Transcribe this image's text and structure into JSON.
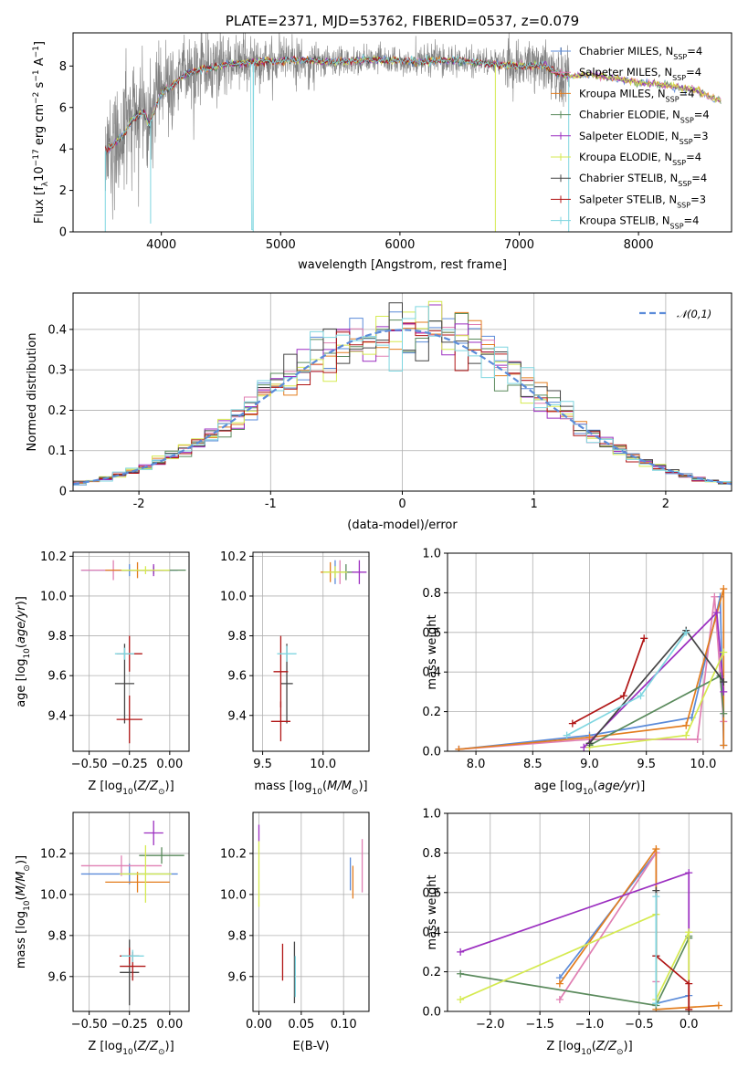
{
  "chart_data": [
    {
      "id": "spectrum",
      "type": "line",
      "title": "PLATE=2371, MJD=53762, FIBERID=0537, z=0.079",
      "xlabel": "wavelength [Angstrom, rest frame]",
      "ylabel": "Flux [f_λ10^-17 erg cm^-2 s^-1 A^-1]",
      "xlim": [
        3260,
        8780
      ],
      "ylim": [
        0,
        9.6
      ],
      "xticks": [
        4000,
        5000,
        6000,
        7000,
        8000
      ],
      "yticks": [
        0,
        2,
        4,
        6,
        8
      ],
      "grid": false,
      "legend_position": "top-right",
      "data_series": {
        "name": "",
        "color": "#808080",
        "x_range": [
          3530,
          7420
        ]
      },
      "series": [
        {
          "name": "Chabrier MILES, N_SSP=4",
          "color": "#5b8bd9"
        },
        {
          "name": "Salpeter MILES, N_SSP=4",
          "color": "#e07fb3"
        },
        {
          "name": "Kroupa MILES, N_SSP=4",
          "color": "#e37d1e"
        },
        {
          "name": "Chabrier ELODIE, N_SSP=4",
          "color": "#5a8a5c"
        },
        {
          "name": "Salpeter ELODIE, N_SSP=3",
          "color": "#9b2ec0"
        },
        {
          "name": "Kroupa ELODIE, N_SSP=4",
          "color": "#d5ea50"
        },
        {
          "name": "Chabrier STELIB, N_SSP=4",
          "color": "#444444"
        },
        {
          "name": "Salpeter STELIB, N_SSP=3",
          "color": "#b01515"
        },
        {
          "name": "Kroupa STELIB, N_SSP=4",
          "color": "#7fd6e0"
        }
      ],
      "model_curve": {
        "x": [
          3530,
          3580,
          3650,
          3700,
          3750,
          3850,
          3900,
          3950,
          4000,
          4100,
          4200,
          4300,
          4400,
          4500,
          4600,
          4800,
          5000,
          5200,
          5400,
          5600,
          5800,
          6000,
          6200,
          6400,
          6600,
          6800,
          7000,
          7100,
          7200,
          7300,
          7400,
          7600,
          7800,
          8000,
          8200,
          8400,
          8500,
          8600,
          8700
        ],
        "y": [
          3.9,
          4.1,
          4.5,
          4.8,
          5.4,
          5.8,
          5.2,
          6.0,
          6.7,
          7.1,
          7.6,
          7.8,
          7.9,
          8.0,
          8.1,
          8.2,
          8.25,
          8.3,
          8.2,
          8.25,
          8.3,
          8.25,
          8.2,
          8.3,
          8.2,
          8.1,
          8.0,
          8.0,
          8.05,
          7.7,
          7.5,
          7.6,
          7.4,
          7.2,
          7.1,
          6.9,
          6.8,
          6.5,
          6.3
        ]
      }
    },
    {
      "id": "residuals",
      "type": "bar",
      "xlabel": "(data-model)/error",
      "ylabel": "Normed distribution",
      "xlim": [
        -2.5,
        2.5
      ],
      "ylim": [
        0,
        0.49
      ],
      "xticks": [
        -2,
        -1,
        0,
        1,
        2
      ],
      "yticks": [
        0.0,
        0.1,
        0.2,
        0.3,
        0.4
      ],
      "grid": true,
      "legend_position": "top-right",
      "reference_curve": {
        "name": "𝒩(0,1)",
        "color": "#5b8bd9",
        "style": "dashed",
        "mean": 0,
        "sigma": 1
      },
      "bin_width": 0.1,
      "series_colors": [
        "#5b8bd9",
        "#e07fb3",
        "#e37d1e",
        "#5a8a5c",
        "#9b2ec0",
        "#d5ea50",
        "#444444",
        "#b01515",
        "#7fd6e0"
      ]
    },
    {
      "id": "age-vs-Z",
      "type": "scatter",
      "xlabel": "Z [log10(Z/Z⊙)]",
      "ylabel": "age  [log10(age/yr)]",
      "xlim": [
        -0.6,
        0.12
      ],
      "ylim": [
        9.22,
        10.22
      ],
      "xticks": [
        -0.5,
        -0.25,
        0.0
      ],
      "ytickvals": [
        9.4,
        9.6,
        9.8,
        10.0,
        10.2
      ],
      "yticks": [
        "9.4",
        "9.6",
        "9.8",
        "10.0",
        "10.2"
      ],
      "xticklabels": [
        "−0.50",
        "−0.25",
        "0.00"
      ],
      "grid": true,
      "points": [
        {
          "c": "#5b8bd9",
          "x": -0.25,
          "y": 10.13,
          "xerr": 0.3,
          "yerr": 0.03
        },
        {
          "c": "#e07fb3",
          "x": -0.35,
          "y": 10.13,
          "xerr": 0.2,
          "yerr": 0.05
        },
        {
          "c": "#e37d1e",
          "x": -0.2,
          "y": 10.13,
          "xerr": 0.2,
          "yerr": 0.04
        },
        {
          "c": "#5a8a5c",
          "x": -0.1,
          "y": 10.13,
          "xerr": 0.2,
          "yerr": 0.02
        },
        {
          "c": "#9b2ec0",
          "x": -0.1,
          "y": 10.13,
          "xerr": 0.06,
          "yerr": 0.03
        },
        {
          "c": "#d5ea50",
          "x": -0.15,
          "y": 10.13,
          "xerr": 0.15,
          "yerr": 0.02
        },
        {
          "c": "#444444",
          "x": -0.28,
          "y": 9.56,
          "xerr": 0.06,
          "yerr": 0.2
        },
        {
          "c": "#b01515",
          "x": -0.25,
          "y": 9.38,
          "xerr": 0.08,
          "yerr": 0.12
        },
        {
          "c": "#b01515",
          "x": -0.25,
          "y": 9.71,
          "xerr": 0.08,
          "yerr": 0.09
        },
        {
          "c": "#7fd6e0",
          "x": -0.28,
          "y": 9.71,
          "xerr": 0.06,
          "yerr": 0.03
        }
      ]
    },
    {
      "id": "age-vs-mass",
      "type": "scatter",
      "xlabel": "mass [log10(M/M⊙)]",
      "ylabel": "",
      "xlim": [
        9.42,
        10.38
      ],
      "ylim": [
        9.22,
        10.22
      ],
      "xticks": [
        9.5,
        10.0
      ],
      "ytickvals": [
        9.4,
        9.6,
        9.8,
        10.0,
        10.2
      ],
      "yticks": [
        "9.4",
        "9.6",
        "9.8",
        "10.0",
        "10.2"
      ],
      "xticklabels": [
        "9.5",
        "10.0"
      ],
      "grid": true,
      "points": [
        {
          "c": "#5b8bd9",
          "x": 10.1,
          "y": 10.12,
          "xerr": 0.1,
          "yerr": 0.06
        },
        {
          "c": "#e07fb3",
          "x": 10.14,
          "y": 10.12,
          "xerr": 0.06,
          "yerr": 0.06
        },
        {
          "c": "#e37d1e",
          "x": 10.06,
          "y": 10.12,
          "xerr": 0.08,
          "yerr": 0.05
        },
        {
          "c": "#5a8a5c",
          "x": 10.19,
          "y": 10.12,
          "xerr": 0.06,
          "yerr": 0.04
        },
        {
          "c": "#9b2ec0",
          "x": 10.3,
          "y": 10.12,
          "xerr": 0.06,
          "yerr": 0.06
        },
        {
          "c": "#d5ea50",
          "x": 10.1,
          "y": 10.12,
          "xerr": 0.1,
          "yerr": 0.03
        },
        {
          "c": "#444444",
          "x": 9.7,
          "y": 9.56,
          "xerr": 0.05,
          "yerr": 0.2
        },
        {
          "c": "#b01515",
          "x": 9.65,
          "y": 9.37,
          "xerr": 0.08,
          "yerr": 0.1
        },
        {
          "c": "#b01515",
          "x": 9.65,
          "y": 9.62,
          "xerr": 0.06,
          "yerr": 0.18
        },
        {
          "c": "#7fd6e0",
          "x": 9.7,
          "y": 9.71,
          "xerr": 0.08,
          "yerr": 0.04
        }
      ]
    },
    {
      "id": "weight-vs-age",
      "type": "line",
      "xlabel": "age  [log10(age/yr)]",
      "ylabel": "mass weight",
      "xlim": [
        7.75,
        10.25
      ],
      "ylim": [
        0,
        1
      ],
      "xticks": [
        8.0,
        8.5,
        9.0,
        9.5,
        10.0
      ],
      "ytickvals": [
        0.0,
        0.2,
        0.4,
        0.6,
        0.8,
        1.0
      ],
      "yticks": [
        "0.0",
        "0.2",
        "0.4",
        "0.6",
        "0.8",
        "1.0"
      ],
      "xticklabels": [
        "8.0",
        "8.5",
        "9.0",
        "9.5",
        "10.0"
      ],
      "grid": true,
      "series": [
        {
          "c": "#5b8bd9",
          "x": [
            7.85,
            9.0,
            9.9,
            10.15,
            10.18
          ],
          "y": [
            0.01,
            0.08,
            0.17,
            0.78,
            0.03
          ]
        },
        {
          "c": "#e07fb3",
          "x": [
            7.85,
            9.0,
            9.95,
            10.1,
            10.18
          ],
          "y": [
            0.01,
            0.06,
            0.06,
            0.78,
            0.15
          ]
        },
        {
          "c": "#e37d1e",
          "x": [
            7.85,
            9.0,
            9.85,
            10.18,
            10.18
          ],
          "y": [
            0.01,
            0.07,
            0.13,
            0.82,
            0.03
          ]
        },
        {
          "c": "#5a8a5c",
          "x": [
            9.0,
            10.15,
            10.18
          ],
          "y": [
            0.03,
            0.38,
            0.19
          ]
        },
        {
          "c": "#9b2ec0",
          "x": [
            8.95,
            10.12,
            10.18
          ],
          "y": [
            0.02,
            0.7,
            0.3
          ]
        },
        {
          "c": "#d5ea50",
          "x": [
            9.0,
            9.85,
            10.18
          ],
          "y": [
            0.02,
            0.08,
            0.5
          ]
        },
        {
          "c": "#444444",
          "x": [
            9.0,
            9.85,
            10.18
          ],
          "y": [
            0.04,
            0.61,
            0.35
          ]
        },
        {
          "c": "#b01515",
          "x": [
            8.85,
            9.3,
            9.48
          ],
          "y": [
            0.14,
            0.28,
            0.57
          ]
        },
        {
          "c": "#7fd6e0",
          "x": [
            8.8,
            9.45,
            9.85
          ],
          "y": [
            0.08,
            0.28,
            0.6
          ]
        }
      ]
    },
    {
      "id": "mass-vs-Z",
      "type": "scatter",
      "xlabel": "Z [log10(Z/Z⊙)]",
      "ylabel": "mass [log10(M/M⊙)]",
      "xlim": [
        -0.6,
        0.12
      ],
      "ylim": [
        9.43,
        10.4
      ],
      "xticks": [
        -0.5,
        -0.25,
        0.0
      ],
      "ytickvals": [
        9.6,
        9.8,
        10.0,
        10.2
      ],
      "yticks": [
        "9.6",
        "9.8",
        "10.0",
        "10.2"
      ],
      "xticklabels": [
        "−0.50",
        "−0.25",
        "0.00"
      ],
      "grid": true,
      "points": [
        {
          "c": "#5b8bd9",
          "x": -0.25,
          "y": 10.1,
          "xerr": 0.3,
          "yerr": 0.05
        },
        {
          "c": "#e07fb3",
          "x": -0.3,
          "y": 10.14,
          "xerr": 0.25,
          "yerr": 0.05
        },
        {
          "c": "#e37d1e",
          "x": -0.2,
          "y": 10.06,
          "xerr": 0.2,
          "yerr": 0.05
        },
        {
          "c": "#5a8a5c",
          "x": -0.05,
          "y": 10.19,
          "xerr": 0.14,
          "yerr": 0.04
        },
        {
          "c": "#9b2ec0",
          "x": -0.1,
          "y": 10.3,
          "xerr": 0.06,
          "yerr": 0.06
        },
        {
          "c": "#d5ea50",
          "x": -0.15,
          "y": 10.1,
          "xerr": 0.16,
          "yerr": 0.14
        },
        {
          "c": "#444444",
          "x": -0.25,
          "y": 9.62,
          "xerr": 0.06,
          "yerr": 0.16
        },
        {
          "c": "#b01515",
          "x": -0.23,
          "y": 9.65,
          "xerr": 0.08,
          "yerr": 0.07
        },
        {
          "c": "#b01515",
          "x": -0.25,
          "y": 9.7,
          "xerr": 0.06,
          "yerr": 0.04
        },
        {
          "c": "#7fd6e0",
          "x": -0.23,
          "y": 9.7,
          "xerr": 0.07,
          "yerr": 0.03
        }
      ]
    },
    {
      "id": "mass-vs-ebv",
      "type": "scatter",
      "xlabel": "E(B-V)",
      "ylabel": "",
      "xlim": [
        -0.007,
        0.13
      ],
      "ylim": [
        9.43,
        10.4
      ],
      "xticks": [
        0.0,
        0.05,
        0.1
      ],
      "ytickvals": [
        9.6,
        9.8,
        10.0,
        10.2
      ],
      "yticks": [
        "9.6",
        "9.8",
        "10.0",
        "10.2"
      ],
      "xticklabels": [
        "0.00",
        "0.05",
        "0.10"
      ],
      "grid": true,
      "points": [
        {
          "c": "#5b8bd9",
          "x": 0.108,
          "y": 10.1,
          "xerr": 0,
          "yerr": 0.08
        },
        {
          "c": "#e07fb3",
          "x": 0.122,
          "y": 10.14,
          "xerr": 0,
          "yerr": 0.13
        },
        {
          "c": "#e37d1e",
          "x": 0.111,
          "y": 10.06,
          "xerr": 0,
          "yerr": 0.08
        },
        {
          "c": "#9b2ec0",
          "x": 0.0,
          "y": 10.3,
          "xerr": 0,
          "yerr": 0.04
        },
        {
          "c": "#d5ea50",
          "x": 0.0,
          "y": 10.1,
          "xerr": 0,
          "yerr": 0.16
        },
        {
          "c": "#444444",
          "x": 0.042,
          "y": 9.62,
          "xerr": 0,
          "yerr": 0.15
        },
        {
          "c": "#b01515",
          "x": 0.028,
          "y": 9.67,
          "xerr": 0,
          "yerr": 0.09
        },
        {
          "c": "#7fd6e0",
          "x": 0.043,
          "y": 9.6,
          "xerr": 0,
          "yerr": 0.1
        }
      ]
    },
    {
      "id": "weight-vs-Z",
      "type": "line",
      "xlabel": "Z [log10(Z/Z⊙)]",
      "ylabel": "mass weight",
      "xlim": [
        -2.43,
        0.43
      ],
      "ylim": [
        0,
        1
      ],
      "xticks": [
        -2.0,
        -1.5,
        -1.0,
        -0.5,
        0.0
      ],
      "ytickvals": [
        0.0,
        0.2,
        0.4,
        0.6,
        0.8,
        1.0
      ],
      "yticks": [
        "0.0",
        "0.2",
        "0.4",
        "0.6",
        "0.8",
        "1.0"
      ],
      "xticklabels": [
        "−2.0",
        "−1.5",
        "−1.0",
        "−0.5",
        "0.0"
      ],
      "grid": true,
      "series": [
        {
          "c": "#5b8bd9",
          "x": [
            -1.3,
            -0.33,
            -0.33,
            0.0
          ],
          "y": [
            0.17,
            0.8,
            0.04,
            0.08
          ]
        },
        {
          "c": "#e07fb3",
          "x": [
            -1.3,
            -0.33,
            -0.33
          ],
          "y": [
            0.06,
            0.8,
            0.15
          ]
        },
        {
          "c": "#e37d1e",
          "x": [
            -1.3,
            -0.33,
            -0.33,
            0.3
          ],
          "y": [
            0.14,
            0.82,
            0.01,
            0.03
          ]
        },
        {
          "c": "#5a8a5c",
          "x": [
            -2.3,
            -0.33,
            0.0,
            0.0
          ],
          "y": [
            0.19,
            0.03,
            0.37,
            0.38
          ]
        },
        {
          "c": "#9b2ec0",
          "x": [
            -2.3,
            0.0,
            0.0
          ],
          "y": [
            0.3,
            0.7,
            0.0
          ]
        },
        {
          "c": "#d5ea50",
          "x": [
            -2.3,
            -0.33,
            -0.33,
            0.0,
            0.0
          ],
          "y": [
            0.06,
            0.49,
            0.06,
            0.4,
            0.0
          ]
        },
        {
          "c": "#444444",
          "x": [
            -0.33,
            -0.33
          ],
          "y": [
            0.61,
            0.28
          ]
        },
        {
          "c": "#b01515",
          "x": [
            -0.33,
            0.0,
            0.0
          ],
          "y": [
            0.28,
            0.14,
            0.01
          ]
        },
        {
          "c": "#7fd6e0",
          "x": [
            -0.33,
            -0.33
          ],
          "y": [
            0.58,
            0.04
          ]
        }
      ]
    }
  ]
}
